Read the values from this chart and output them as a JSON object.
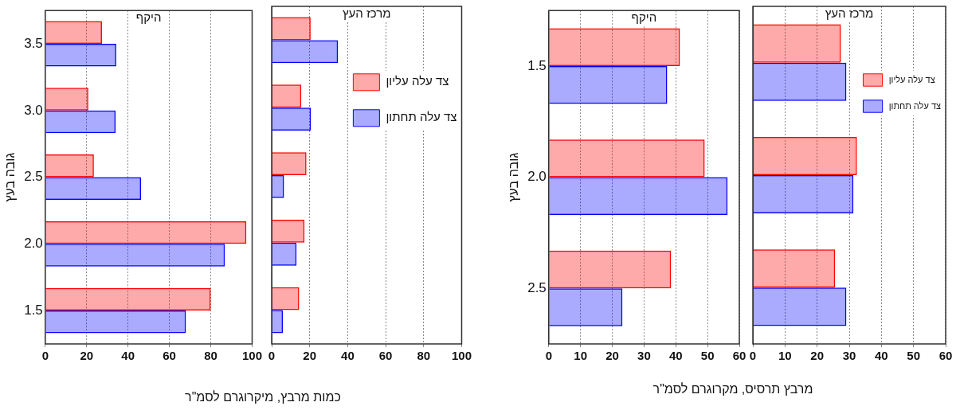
{
  "chart_data": [
    {
      "type": "bar",
      "orientation": "horizontal",
      "title": "היקף",
      "ylabel": "גובה בעץ",
      "xlabel": "כמות מרבץ, מיקרוגרם לסמ\"ר",
      "categories": [
        "3.5",
        "3.0",
        "2.5",
        "2.0",
        "1.5"
      ],
      "series": [
        {
          "color": "#ff0000",
          "values": [
            27.4,
            20.8,
            23.5,
            97.2,
            80
          ]
        },
        {
          "color": "#0000ff",
          "values": [
            34.3,
            34,
            46.3,
            86.8,
            68
          ]
        }
      ],
      "xlim": [
        0,
        100
      ],
      "xticks": [
        0,
        20,
        40,
        60,
        80,
        100
      ],
      "grid": "x"
    },
    {
      "type": "bar",
      "orientation": "horizontal",
      "title": "מרכז העץ",
      "categories": [
        "3.5",
        "3.0",
        "2.5",
        "2.0",
        "1.5"
      ],
      "series": [
        {
          "name": "צד עלה עליון",
          "color": "#ff0000",
          "values": [
            20.5,
            15.6,
            18.3,
            17.3,
            14.5
          ]
        },
        {
          "name": "צד עלה תחתון",
          "color": "#0000ff",
          "values": [
            34.9,
            20.7,
            6.5,
            13.1,
            5.9
          ]
        }
      ],
      "xlim": [
        0,
        100
      ],
      "xticks": [
        0,
        20,
        40,
        60,
        80,
        100
      ],
      "grid": "x",
      "legend": "top right",
      "tick_labels": "x"
    },
    {
      "type": "bar",
      "orientation": "horizontal",
      "title": "היקף",
      "ylabel": "גובה בעץ",
      "xlabel": "מרבץ תרסיס, מקרוגרם לסמ\"ר",
      "categories": [
        "1.5",
        "2.0",
        "2.5"
      ],
      "series": [
        {
          "color": "#ff0000",
          "values": [
            41.3,
            49.1,
            38.5
          ]
        },
        {
          "color": "#0000ff",
          "values": [
            37.3,
            56.3,
            23.2
          ]
        }
      ],
      "xlim": [
        0,
        60
      ],
      "xticks": [
        0,
        10,
        20,
        30,
        40,
        50,
        60
      ],
      "grid": "x"
    },
    {
      "type": "bar",
      "orientation": "horizontal",
      "title": "מרכז העץ",
      "categories": [
        "1.5",
        "2.0",
        "2.5"
      ],
      "series": [
        {
          "name": "צד עלה עליון",
          "color": "#ff0000",
          "values": [
            27.4,
            32.4,
            25.6
          ]
        },
        {
          "name": "צד עלה תחתון",
          "color": "#0000ff",
          "values": [
            29.1,
            31.3,
            29.1
          ]
        }
      ],
      "xlim": [
        0,
        60
      ],
      "xticks": [
        0,
        10,
        20,
        30,
        40,
        50,
        60
      ],
      "grid": "x",
      "legend": "top right",
      "tick_labels": "x"
    }
  ]
}
